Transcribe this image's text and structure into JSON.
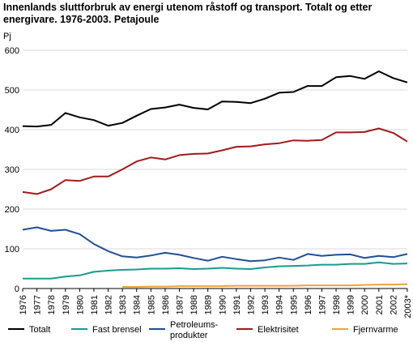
{
  "chart_data": {
    "type": "line",
    "title": "Innenlands sluttforbruk av energi utenom råstoff og transport. Totalt og etter energivare. 1976-2003. Petajoule",
    "ylabel": "Pj",
    "xlabel": "",
    "ylim": [
      0,
      600
    ],
    "yticks": [
      0,
      100,
      200,
      300,
      400,
      500,
      600
    ],
    "grid": true,
    "legend_position": "bottom",
    "categories": [
      "1976",
      "1977",
      "1978",
      "1979",
      "1980",
      "1981",
      "1982",
      "1983",
      "1984",
      "1985",
      "1986",
      "1987",
      "1988",
      "1989",
      "1990",
      "1991",
      "1992",
      "1993",
      "1994",
      "1995",
      "1996",
      "1997",
      "1998",
      "1999",
      "2000",
      "2001",
      "2002",
      "2003*"
    ],
    "series": [
      {
        "name": "Totalt",
        "color": "#000000",
        "values": [
          409,
          408,
          412,
          442,
          431,
          424,
          410,
          417,
          435,
          452,
          456,
          463,
          455,
          451,
          471,
          470,
          467,
          478,
          493,
          495,
          510,
          510,
          532,
          535,
          528,
          547,
          530,
          519
        ]
      },
      {
        "name": "Fast brensel",
        "color": "#199c8e",
        "values": [
          25,
          25,
          25,
          30,
          33,
          42,
          45,
          47,
          48,
          50,
          50,
          51,
          49,
          50,
          52,
          50,
          49,
          53,
          56,
          57,
          58,
          60,
          60,
          62,
          62,
          66,
          62,
          63
        ]
      },
      {
        "name": "Petroleums-\nprodukter",
        "color": "#1f4f95",
        "values": [
          148,
          154,
          145,
          148,
          137,
          112,
          94,
          81,
          78,
          83,
          90,
          85,
          77,
          70,
          80,
          74,
          69,
          71,
          78,
          72,
          87,
          82,
          85,
          86,
          77,
          82,
          79,
          87
        ]
      },
      {
        "name": "Elektrisitet",
        "color": "#a31a1a",
        "values": [
          243,
          238,
          250,
          273,
          271,
          282,
          282,
          300,
          320,
          330,
          325,
          336,
          339,
          340,
          348,
          357,
          358,
          363,
          366,
          373,
          372,
          374,
          393,
          393,
          394,
          403,
          392,
          370
        ]
      },
      {
        "name": "Fjernvarme",
        "color": "#f2a23a",
        "start_index": 7,
        "values": [
          null,
          null,
          null,
          null,
          null,
          null,
          null,
          4,
          4,
          5,
          5,
          6,
          6,
          6,
          6,
          7,
          7,
          7,
          7,
          7,
          8,
          8,
          8,
          8,
          9,
          10,
          10,
          11
        ]
      }
    ]
  }
}
